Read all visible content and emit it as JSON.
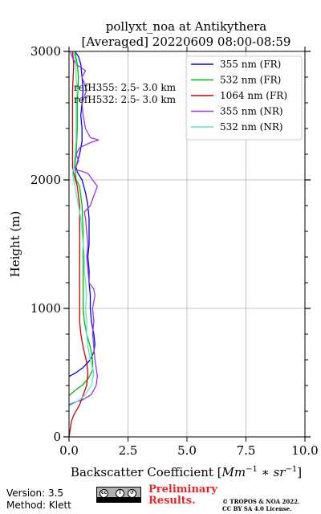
{
  "chart_data": {
    "type": "line",
    "title": "pollyxt_noa at Antikythera",
    "subtitle": "[Averaged] 20220609 08:00-08:59",
    "xlabel_text": "Backscatter Coefficient [",
    "xlabel_unit_text": "Mm",
    "xlabel_unit_exp1": "−1",
    "xlabel_unit_sep": " ∗ ",
    "xlabel_unit_sr": "sr",
    "xlabel_unit_exp2": "−1",
    "xlabel_end": "]",
    "ylabel": "Height (m)",
    "xlim": [
      0,
      10
    ],
    "ylim": [
      0,
      3000
    ],
    "xticks": [
      0,
      2.5,
      5,
      7.5,
      10
    ],
    "xtick_labels": [
      "0.0",
      "2.5",
      "5.0",
      "7.5",
      "10.0"
    ],
    "yticks": [
      0,
      1000,
      2000,
      3000
    ],
    "ytick_labels": [
      "0",
      "1000",
      "2000",
      "3000"
    ],
    "grid": true,
    "legend_position": "top-right",
    "annotations": [
      "refH355:  2.5- 3.0 km",
      "refH532:  2.5- 3.0 km"
    ],
    "series": [
      {
        "name": "355 nm (FR)",
        "color": "#0000ee",
        "points": [
          [
            0,
            470
          ],
          [
            0.3,
            500
          ],
          [
            0.6,
            540
          ],
          [
            0.9,
            600
          ],
          [
            1.05,
            660
          ],
          [
            1.1,
            720
          ],
          [
            1.05,
            800
          ],
          [
            0.95,
            900
          ],
          [
            0.9,
            1000
          ],
          [
            0.9,
            1100
          ],
          [
            0.85,
            1200
          ],
          [
            0.85,
            1300
          ],
          [
            0.8,
            1400
          ],
          [
            0.85,
            1500
          ],
          [
            0.85,
            1600
          ],
          [
            0.85,
            1700
          ],
          [
            0.8,
            1800
          ],
          [
            0.7,
            1900
          ],
          [
            0.55,
            2000
          ],
          [
            0.35,
            2060
          ],
          [
            0.3,
            2100
          ],
          [
            0.45,
            2200
          ],
          [
            0.55,
            2300
          ],
          [
            0.55,
            2400
          ],
          [
            0.5,
            2500
          ],
          [
            0.55,
            2600
          ],
          [
            0.6,
            2700
          ],
          [
            0.55,
            2800
          ],
          [
            0.5,
            2900
          ],
          [
            0.4,
            2960
          ],
          [
            0.25,
            3000
          ]
        ]
      },
      {
        "name": "532 nm (FR)",
        "color": "#00bb00",
        "points": [
          [
            0,
            320
          ],
          [
            0.25,
            360
          ],
          [
            0.55,
            400
          ],
          [
            0.8,
            450
          ],
          [
            1.0,
            520
          ],
          [
            1.0,
            600
          ],
          [
            0.9,
            700
          ],
          [
            0.75,
            800
          ],
          [
            0.65,
            900
          ],
          [
            0.6,
            1000
          ],
          [
            0.6,
            1200
          ],
          [
            0.6,
            1400
          ],
          [
            0.6,
            1600
          ],
          [
            0.55,
            1800
          ],
          [
            0.45,
            1950
          ],
          [
            0.3,
            2000
          ],
          [
            0.25,
            2100
          ],
          [
            0.3,
            2200
          ],
          [
            0.35,
            2400
          ],
          [
            0.35,
            2600
          ],
          [
            0.4,
            2800
          ],
          [
            0.35,
            2900
          ],
          [
            0.25,
            3000
          ]
        ]
      },
      {
        "name": "1064 nm (FR)",
        "color": "#cc0000",
        "points": [
          [
            0,
            0
          ],
          [
            0.05,
            60
          ],
          [
            0.1,
            120
          ],
          [
            0.2,
            170
          ],
          [
            0.45,
            250
          ],
          [
            0.75,
            400
          ],
          [
            0.8,
            500
          ],
          [
            0.75,
            580
          ],
          [
            0.6,
            700
          ],
          [
            0.5,
            800
          ],
          [
            0.45,
            900
          ],
          [
            0.45,
            1000
          ],
          [
            0.45,
            1200
          ],
          [
            0.45,
            1400
          ],
          [
            0.45,
            1600
          ],
          [
            0.45,
            1800
          ],
          [
            0.35,
            1950
          ],
          [
            0.2,
            2050
          ],
          [
            0.15,
            2100
          ],
          [
            0.15,
            2300
          ],
          [
            0.15,
            2500
          ],
          [
            0.15,
            2700
          ],
          [
            0.2,
            2900
          ],
          [
            0.15,
            3000
          ]
        ]
      },
      {
        "name": "355 nm (NR)",
        "color": "#9933ee",
        "points": [
          [
            0,
            250
          ],
          [
            0.25,
            270
          ],
          [
            0.6,
            290
          ],
          [
            0.95,
            330
          ],
          [
            1.15,
            400
          ],
          [
            1.2,
            470
          ],
          [
            1.15,
            540
          ],
          [
            1.1,
            600
          ],
          [
            1.05,
            700
          ],
          [
            1.0,
            800
          ],
          [
            1.05,
            900
          ],
          [
            1.0,
            1000
          ],
          [
            1.1,
            1100
          ],
          [
            1.05,
            1150
          ],
          [
            0.85,
            1200
          ],
          [
            0.8,
            1300
          ],
          [
            0.75,
            1400
          ],
          [
            0.8,
            1500
          ],
          [
            0.75,
            1600
          ],
          [
            0.7,
            1700
          ],
          [
            0.65,
            1750
          ],
          [
            0.9,
            1800
          ],
          [
            1.0,
            1850
          ],
          [
            1.1,
            1900
          ],
          [
            1.2,
            1950
          ],
          [
            1.0,
            2000
          ],
          [
            0.8,
            2050
          ],
          [
            0.5,
            2070
          ],
          [
            0.25,
            2080
          ],
          [
            0.3,
            2100
          ],
          [
            0.4,
            2150
          ],
          [
            0.3,
            2200
          ],
          [
            0.45,
            2250
          ],
          [
            0.9,
            2290
          ],
          [
            1.25,
            2310
          ],
          [
            0.9,
            2330
          ],
          [
            0.7,
            2400
          ],
          [
            0.6,
            2500
          ],
          [
            0.55,
            2600
          ],
          [
            0.75,
            2700
          ],
          [
            0.55,
            2800
          ],
          [
            0.7,
            2850
          ],
          [
            0.3,
            2900
          ],
          [
            0.15,
            2950
          ],
          [
            0.05,
            3000
          ]
        ]
      },
      {
        "name": "532 nm (NR)",
        "color": "#55eebb",
        "points": [
          [
            0,
            240
          ],
          [
            0.3,
            270
          ],
          [
            0.65,
            320
          ],
          [
            0.95,
            400
          ],
          [
            1.05,
            500
          ],
          [
            0.9,
            600
          ],
          [
            0.8,
            700
          ],
          [
            0.75,
            800
          ],
          [
            0.75,
            900
          ],
          [
            0.7,
            1000
          ],
          [
            0.75,
            1100
          ],
          [
            0.7,
            1200
          ],
          [
            0.65,
            1300
          ],
          [
            0.65,
            1400
          ],
          [
            0.6,
            1500
          ],
          [
            0.55,
            1600
          ],
          [
            0.5,
            1700
          ],
          [
            0.4,
            1800
          ],
          [
            0.3,
            1900
          ],
          [
            0.2,
            2000
          ],
          [
            0.15,
            2050
          ],
          [
            0.2,
            2100
          ],
          [
            0.25,
            2200
          ],
          [
            0.3,
            2300
          ],
          [
            0.3,
            2400
          ],
          [
            0.3,
            2500
          ],
          [
            0.3,
            2600
          ],
          [
            0.35,
            2700
          ],
          [
            0.3,
            2800
          ],
          [
            0.3,
            2900
          ],
          [
            0.2,
            3000
          ]
        ]
      }
    ]
  },
  "footer": {
    "version": "Version: 3.5",
    "method": "Method: Klett",
    "preliminary_line1": "Preliminary",
    "preliminary_line2": "Results.",
    "copyright_line1": "© TROPOS & NOA 2022.",
    "copyright_line2": "CC BY SA 4.0 License.",
    "license_badge": "CC BY SA"
  }
}
